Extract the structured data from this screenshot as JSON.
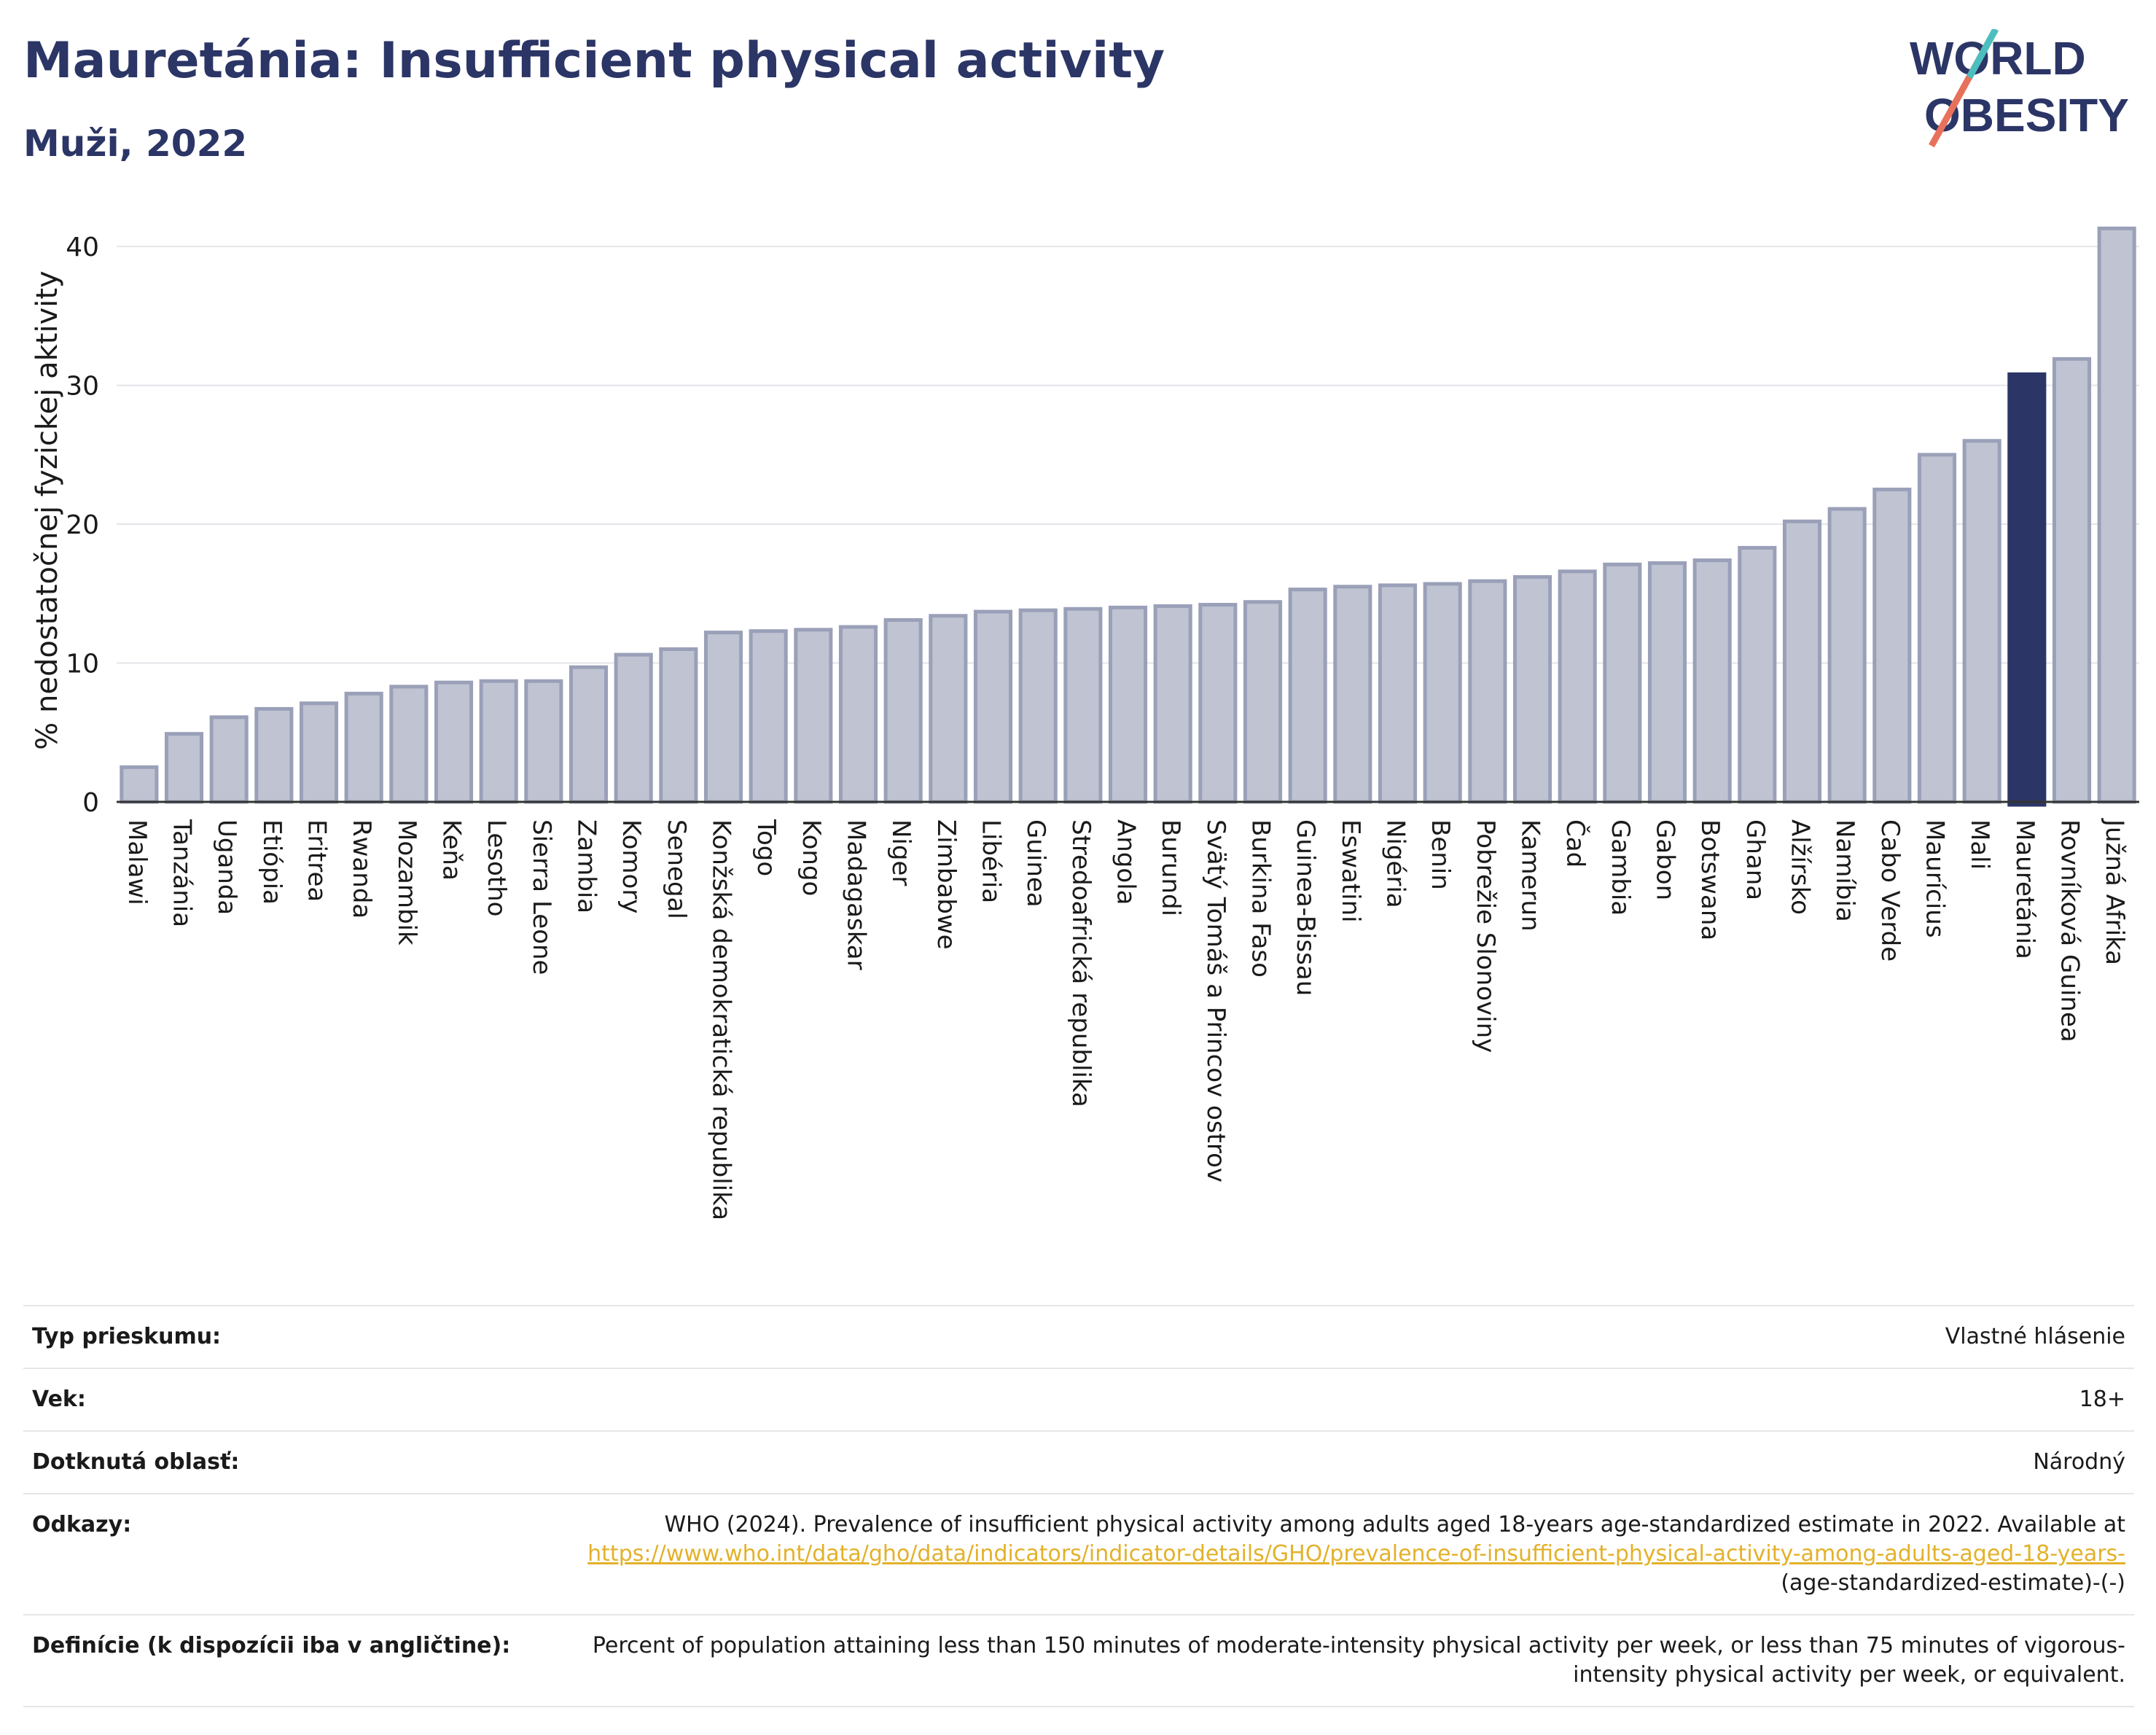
{
  "header": {
    "title": "Mauretánia: Insufficient physical activity",
    "subtitle": "Muži, 2022"
  },
  "logo": {
    "line1": "WORLD",
    "line2": "OBESITY"
  },
  "colors": {
    "bar": "#bfc3d2",
    "bar_stroke": "#9aa0b8",
    "highlight": "#2b3566",
    "title": "#2b3566"
  },
  "chart_data": {
    "type": "bar",
    "title": "Mauretánia: Insufficient physical activity",
    "subtitle": "Muži, 2022",
    "xlabel": "",
    "ylabel": "% nedostatočnej fyzickej aktivity",
    "ylim": [
      0,
      42
    ],
    "yticks": [
      0,
      10,
      20,
      30,
      40
    ],
    "grid": true,
    "highlight": "Mauretánia",
    "categories": [
      "Malawi",
      "Tanzánia",
      "Uganda",
      "Etiópia",
      "Eritrea",
      "Rwanda",
      "Mozambik",
      "Keňa",
      "Lesotho",
      "Sierra Leone",
      "Zambia",
      "Komory",
      "Senegal",
      "Konžská demokratická republika",
      "Togo",
      "Kongo",
      "Madagaskar",
      "Niger",
      "Zimbabwe",
      "Libéria",
      "Guinea",
      "Stredoafrická republika",
      "Angola",
      "Burundi",
      "Svätý Tomáš a Princov ostrov",
      "Burkina Faso",
      "Guinea-Bissau",
      "Eswatini",
      "Nigéria",
      "Benin",
      "Pobrežie Slonoviny",
      "Kamerun",
      "Čad",
      "Gambia",
      "Gabon",
      "Botswana",
      "Ghana",
      "Alžírsko",
      "Namíbia",
      "Cabo Verde",
      "Maurícius",
      "Mali",
      "Mauretánia",
      "Rovníková Guinea",
      "Južná Afrika"
    ],
    "values": [
      2.5,
      4.9,
      6.1,
      6.7,
      7.1,
      7.8,
      8.3,
      8.6,
      8.7,
      8.7,
      9.7,
      10.6,
      11.0,
      12.2,
      12.3,
      12.4,
      12.6,
      13.1,
      13.4,
      13.7,
      13.8,
      13.9,
      14.0,
      14.1,
      14.2,
      14.4,
      15.3,
      15.5,
      15.6,
      15.7,
      15.9,
      16.2,
      16.6,
      17.1,
      17.2,
      17.4,
      18.3,
      20.2,
      21.1,
      22.5,
      25.0,
      26.0,
      30.8,
      31.9,
      41.3
    ]
  },
  "meta": {
    "rows": [
      {
        "key": "Typ prieskumu:",
        "value": "Vlastné hlásenie"
      },
      {
        "key": "Vek:",
        "value": "18+"
      },
      {
        "key": "Dotknutá oblasť:",
        "value": "Národný"
      }
    ],
    "references": {
      "key": "Odkazy:",
      "text": "WHO (2024). Prevalence of insufficient physical activity among adults aged 18-years age-standardized estimate in 2022. Available at",
      "link": "https://www.who.int/data/gho/data/indicators/indicator-details/GHO/prevalence-of-insufficient-physical-activity-among-adults-aged-18-years-",
      "tail": "(age-standardized-estimate)-(-)"
    },
    "definitions": {
      "key": "Definície (k dispozícii iba v angličtine):",
      "value": "Percent of population attaining less than 150 minutes of moderate-intensity physical activity per week, or less than 75 minutes of vigorous-intensity physical activity per week, or equivalent."
    }
  }
}
